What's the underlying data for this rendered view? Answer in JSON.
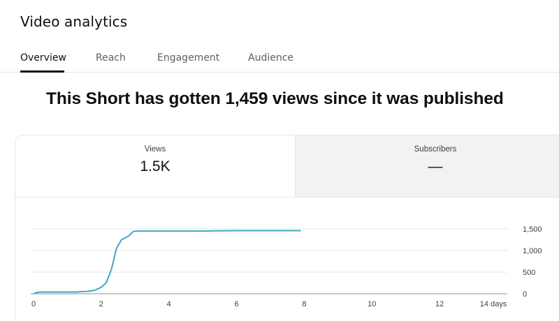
{
  "header": {
    "title": "Video analytics"
  },
  "tabs": [
    {
      "label": "Overview",
      "active": true
    },
    {
      "label": "Reach",
      "active": false
    },
    {
      "label": "Engagement",
      "active": false
    },
    {
      "label": "Audience",
      "active": false
    }
  ],
  "headline": "This Short has gotten 1,459 views since it was published",
  "metrics": {
    "views": {
      "label": "Views",
      "value": "1.5K"
    },
    "subscribers": {
      "label": "Subscribers",
      "value": "—"
    }
  },
  "colors": {
    "line": "#3ea6c7",
    "grid": "#e5e5e5",
    "accent": "#0f0f0f"
  },
  "chart_data": {
    "type": "line",
    "title": "",
    "xlabel": "",
    "ylabel": "",
    "xlim": [
      0,
      14
    ],
    "ylim": [
      0,
      1500
    ],
    "x_ticks": [
      0,
      2,
      4,
      6,
      8,
      10,
      12,
      14
    ],
    "x_tick_labels": [
      "0",
      "2",
      "4",
      "6",
      "8",
      "10",
      "12",
      "14 days"
    ],
    "y_ticks": [
      0,
      500,
      1000,
      1500
    ],
    "y_tick_labels": [
      "0",
      "500",
      "1,000",
      "1,500"
    ],
    "grid": true,
    "series": [
      {
        "x": [
          0,
          0.1,
          0.2,
          1.0,
          1.3,
          1.4,
          1.6,
          1.8,
          2.0,
          2.15,
          2.3,
          2.45,
          2.6,
          2.8,
          2.95,
          3.0,
          4.0,
          5.0,
          5.4,
          6.0,
          7.0,
          7.9
        ],
        "y": [
          0,
          30,
          40,
          40,
          40,
          50,
          55,
          80,
          150,
          260,
          560,
          1050,
          1250,
          1330,
          1440,
          1450,
          1450,
          1450,
          1455,
          1459,
          1459,
          1459
        ]
      }
    ]
  }
}
